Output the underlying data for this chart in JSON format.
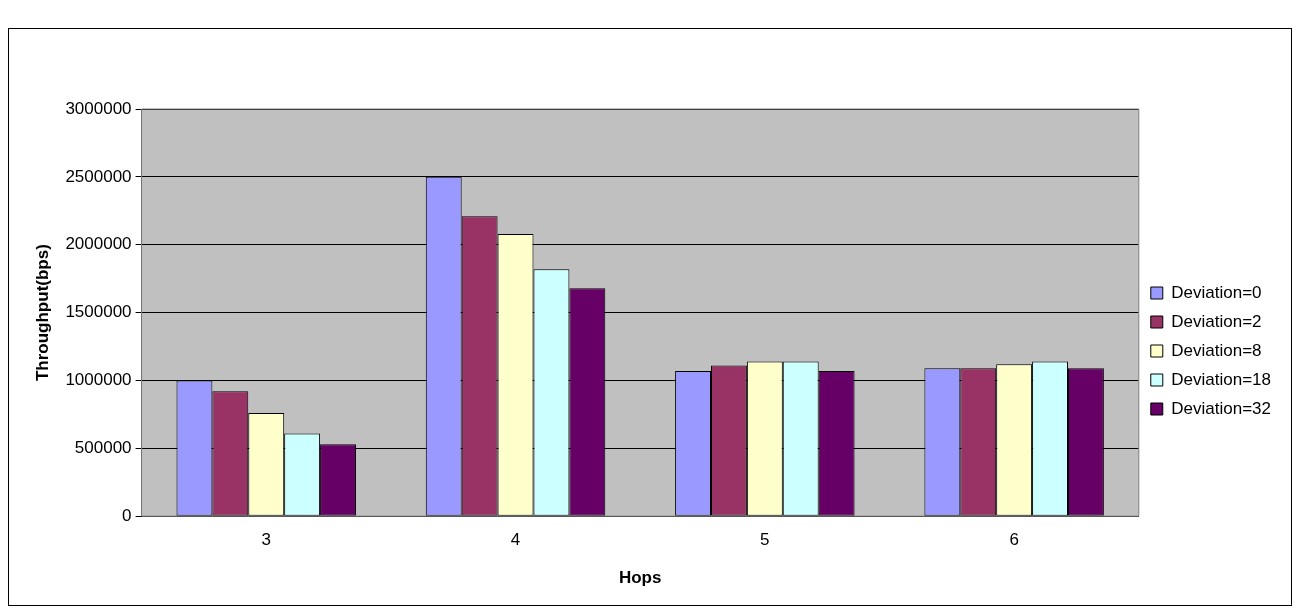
{
  "chart_data": {
    "type": "bar",
    "xlabel": "Hops",
    "ylabel": "Throughput(bps)",
    "categories": [
      "3",
      "4",
      "5",
      "6"
    ],
    "series": [
      {
        "name": "Deviation=0",
        "color": "#9999ff",
        "values": [
          1000000,
          2500000,
          1070000,
          1090000
        ]
      },
      {
        "name": "Deviation=2",
        "color": "#993366",
        "values": [
          920000,
          2210000,
          1110000,
          1090000
        ]
      },
      {
        "name": "Deviation=8",
        "color": "#ffffcc",
        "values": [
          760000,
          2080000,
          1140000,
          1120000
        ]
      },
      {
        "name": "Deviation=18",
        "color": "#ccffff",
        "values": [
          610000,
          1820000,
          1140000,
          1140000
        ]
      },
      {
        "name": "Deviation=32",
        "color": "#660066",
        "values": [
          530000,
          1680000,
          1070000,
          1090000
        ]
      }
    ],
    "ylim": [
      0,
      3000000
    ],
    "yticks": [
      0,
      500000,
      1000000,
      1500000,
      2000000,
      2500000,
      3000000
    ],
    "grid": "y",
    "legend": "right"
  }
}
